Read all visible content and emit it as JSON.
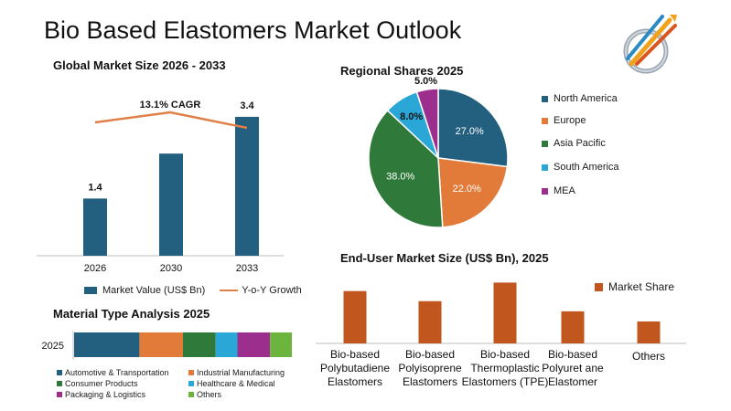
{
  "page": {
    "title": "Bio Based Elastomers Market Outlook"
  },
  "colors": {
    "primary": "#235f7f",
    "orange": "#e27b3a",
    "green": "#2f7a3a",
    "sky": "#2aa7d6",
    "purple": "#9c2f8e",
    "lime": "#6bb43e",
    "rust": "#c1561e"
  },
  "chart_data": [
    {
      "id": "global-market",
      "type": "bar",
      "title": "Global Market Size 2026 - 2033",
      "categories": [
        "2026",
        "2030",
        "2033"
      ],
      "series": [
        {
          "name": "Market Value (US$ Bn)",
          "values": [
            1.4,
            2.5,
            3.4
          ]
        },
        {
          "name": "Y-o-Y Growth",
          "type": "line"
        }
      ],
      "data_labels": [
        "1.4",
        "",
        "3.4"
      ],
      "annotation": "13.1% CAGR",
      "ylim": [
        0,
        3.8
      ],
      "grid": false,
      "legend_position": "bottom"
    },
    {
      "id": "regional-shares",
      "type": "pie",
      "title": "Regional Shares 2025",
      "labels": [
        "North America",
        "Europe",
        "Asia Pacific",
        "South America",
        "MEA"
      ],
      "values": [
        27.0,
        22.0,
        38.0,
        8.0,
        5.0
      ],
      "value_labels": [
        "27.0%",
        "22.0%",
        "38.0%",
        "8.0%",
        "5.0%"
      ],
      "legend_position": "right"
    },
    {
      "id": "end-user",
      "type": "bar",
      "title": "End-User Market Size (US$ Bn), 2025",
      "categories": [
        [
          "Bio-based",
          "Polybutadiene",
          "Elastomers"
        ],
        [
          "Bio-based",
          "Polyisoprene",
          "Elastomers"
        ],
        [
          "Bio-based",
          "Thermoplastic",
          "Elastomers (TPE)"
        ],
        [
          "Bio-based",
          "Polyuret ane",
          "Elastomer"
        ],
        [
          "Others"
        ]
      ],
      "series": [
        {
          "name": "Market Share",
          "values": [
            0.62,
            0.5,
            0.72,
            0.38,
            0.26
          ]
        }
      ],
      "ylim": [
        0,
        0.8
      ],
      "legend_position": "top-right"
    },
    {
      "id": "material-type",
      "type": "bar",
      "orientation": "horizontal-stacked",
      "title": "Material Type Analysis 2025",
      "categories": [
        "2025"
      ],
      "series": [
        {
          "name": "Automotive & Transportation",
          "values": [
            30
          ]
        },
        {
          "name": "Industrial Manufacturing",
          "values": [
            20
          ]
        },
        {
          "name": "Consumer Products",
          "values": [
            15
          ]
        },
        {
          "name": "Healthcare & Medical",
          "values": [
            10
          ]
        },
        {
          "name": "Packaging & Logistics",
          "values": [
            15
          ]
        },
        {
          "name": "Others",
          "values": [
            10
          ]
        }
      ],
      "legend_position": "bottom"
    }
  ]
}
